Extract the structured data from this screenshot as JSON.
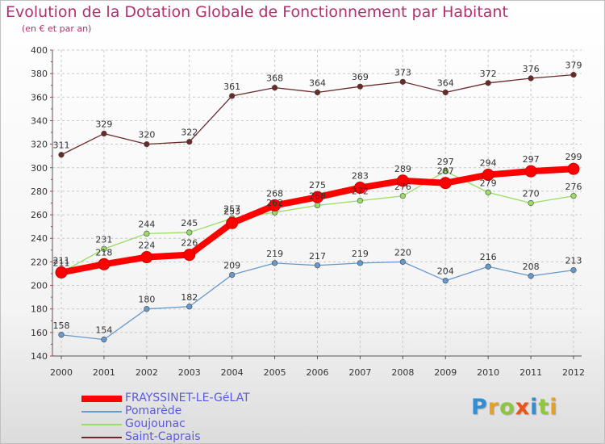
{
  "chart_data": {
    "type": "line",
    "title": "Evolution de la Dotation Globale de Fonctionnement par Habitant",
    "subtitle": "(en € et par an)",
    "x": [
      "2000",
      "2001",
      "2002",
      "2003",
      "2004",
      "2005",
      "2006",
      "2007",
      "2008",
      "2009",
      "2010",
      "2011",
      "2012"
    ],
    "ylim": [
      140,
      400
    ],
    "yticks": [
      140,
      160,
      180,
      200,
      220,
      240,
      260,
      280,
      300,
      320,
      340,
      360,
      380,
      400
    ],
    "grid": true,
    "legend_position": "bottom-left",
    "series": [
      {
        "name": "FRAYSSINET-LE-GéLAT",
        "color": "#ff0000",
        "values": [
          211,
          218,
          224,
          226,
          253,
          268,
          275,
          283,
          289,
          287,
          294,
          297,
          299
        ]
      },
      {
        "name": "Pomarède",
        "color": "#6699cc",
        "values": [
          158,
          154,
          180,
          182,
          209,
          219,
          217,
          219,
          220,
          204,
          216,
          208,
          213
        ]
      },
      {
        "name": "Goujounac",
        "color": "#99dd66",
        "values": [
          211,
          231,
          244,
          245,
          257,
          262,
          268,
          272,
          276,
          297,
          279,
          270,
          276
        ]
      },
      {
        "name": "Saint-Caprais",
        "color": "#6b2a2a",
        "values": [
          311,
          329,
          320,
          322,
          361,
          368,
          364,
          369,
          373,
          364,
          372,
          376,
          379
        ]
      }
    ]
  },
  "logo": {
    "letters": [
      "P",
      "r",
      "o",
      "x",
      "i",
      "t",
      "i"
    ],
    "colors": [
      "#2e8fd6",
      "#e8a020",
      "#8dc63f",
      "#e8531e",
      "#2e8fd6",
      "#8dc63f",
      "#e8a020"
    ]
  }
}
